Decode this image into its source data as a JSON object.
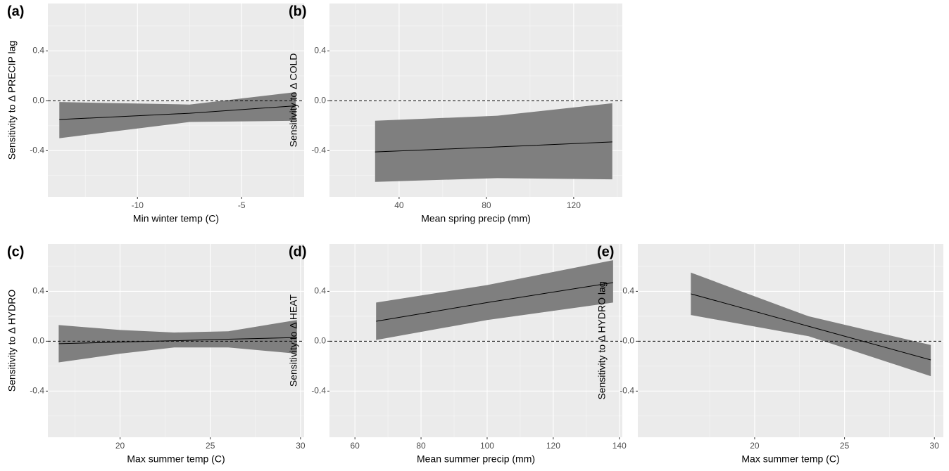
{
  "chart_data": [
    {
      "type": "line",
      "panel_label": "(a)",
      "x_label": "Min winter temp (C)",
      "y_label": "Sensitivity to Δ PRECIP lag",
      "x": [
        -13.75,
        -7.5,
        -2.4
      ],
      "values": [
        -0.15,
        -0.1,
        -0.04
      ],
      "lower": [
        -0.3,
        -0.17,
        -0.16
      ],
      "upper": [
        -0.01,
        -0.03,
        0.07
      ],
      "xlim": [
        -14.3,
        -2.0
      ],
      "ylim": [
        -0.77,
        0.78
      ],
      "xticks": [
        -10,
        -5
      ],
      "yticks": [
        {
          "value": -0.4,
          "label": "-0.4"
        },
        {
          "value": 0,
          "label": "0.0"
        },
        0.4
      ],
      "reference_line": 0,
      "line_color": "#000000",
      "band_color": "#7f7f7f",
      "grid": true
    },
    {
      "type": "line",
      "panel_label": "(b)",
      "x_label": "Mean spring precip (mm)",
      "y_label": "Sensitivity to Δ COLD",
      "x": [
        29,
        85,
        137.7
      ],
      "values": [
        -0.41,
        -0.37,
        -0.33
      ],
      "lower": [
        -0.65,
        -0.62,
        -0.63
      ],
      "upper": [
        -0.16,
        -0.12,
        -0.02
      ],
      "xlim": [
        8.1,
        142.3
      ],
      "ylim": [
        -0.77,
        0.78
      ],
      "xticks": [
        40,
        80,
        120
      ],
      "yticks": [
        {
          "value": -0.4,
          "label": "-0.4"
        },
        {
          "value": 0,
          "label": "0.0"
        },
        0.4
      ],
      "reference_line": 0,
      "line_color": "#000000",
      "band_color": "#7f7f7f",
      "grid": true
    },
    {
      "type": "line",
      "panel_label": "(c)",
      "x_label": "Max summer temp (C)",
      "y_label": "Sensitivity to Δ HYDRO",
      "x": [
        16.6,
        20,
        23,
        26,
        29.8
      ],
      "values": [
        -0.02,
        -0.007,
        0.004,
        0.016,
        0.03
      ],
      "lower": [
        -0.17,
        -0.1,
        -0.05,
        -0.05,
        -0.1
      ],
      "upper": [
        0.13,
        0.09,
        0.07,
        0.08,
        0.17
      ],
      "xlim": [
        16.0,
        30.2
      ],
      "ylim": [
        -0.77,
        0.78
      ],
      "xticks": [
        20,
        25,
        30
      ],
      "yticks": [
        {
          "value": -0.4,
          "label": "-0.4"
        },
        {
          "value": 0,
          "label": "0.0"
        },
        0.4
      ],
      "reference_line": 0,
      "line_color": "#000000",
      "band_color": "#7f7f7f",
      "grid": true
    },
    {
      "type": "line",
      "panel_label": "(d)",
      "x_label": "Mean summer precip (mm)",
      "y_label": "Sensitivity to Δ HEAT",
      "x": [
        66.4,
        100,
        138.1
      ],
      "values": [
        0.16,
        0.31,
        0.47
      ],
      "lower": [
        0.01,
        0.17,
        0.31
      ],
      "upper": [
        0.31,
        0.45,
        0.65
      ],
      "xlim": [
        52.3,
        140.9
      ],
      "ylim": [
        -0.77,
        0.78
      ],
      "xticks": [
        60,
        80,
        100,
        120,
        140
      ],
      "yticks": [
        {
          "value": -0.4,
          "label": "-0.4"
        },
        {
          "value": 0,
          "label": "0.0"
        },
        0.4
      ],
      "reference_line": 0,
      "line_color": "#000000",
      "band_color": "#7f7f7f",
      "grid": true
    },
    {
      "type": "line",
      "panel_label": "(e)",
      "x_label": "Max summer temp (C)",
      "y_label": "Sensitivity to Δ HYDRO lag",
      "x": [
        16.45,
        23,
        29.8
      ],
      "values": [
        0.38,
        0.12,
        -0.15
      ],
      "lower": [
        0.21,
        0.04,
        -0.28
      ],
      "upper": [
        0.55,
        0.2,
        -0.03
      ],
      "xlim": [
        13.5,
        30.5
      ],
      "ylim": [
        -0.77,
        0.78
      ],
      "xticks": [
        20,
        25,
        30
      ],
      "yticks": [
        {
          "value": -0.4,
          "label": "-0.4"
        },
        {
          "value": 0,
          "label": "0.0"
        },
        0.4
      ],
      "reference_line": 0,
      "line_color": "#000000",
      "band_color": "#7f7f7f",
      "grid": true
    }
  ]
}
